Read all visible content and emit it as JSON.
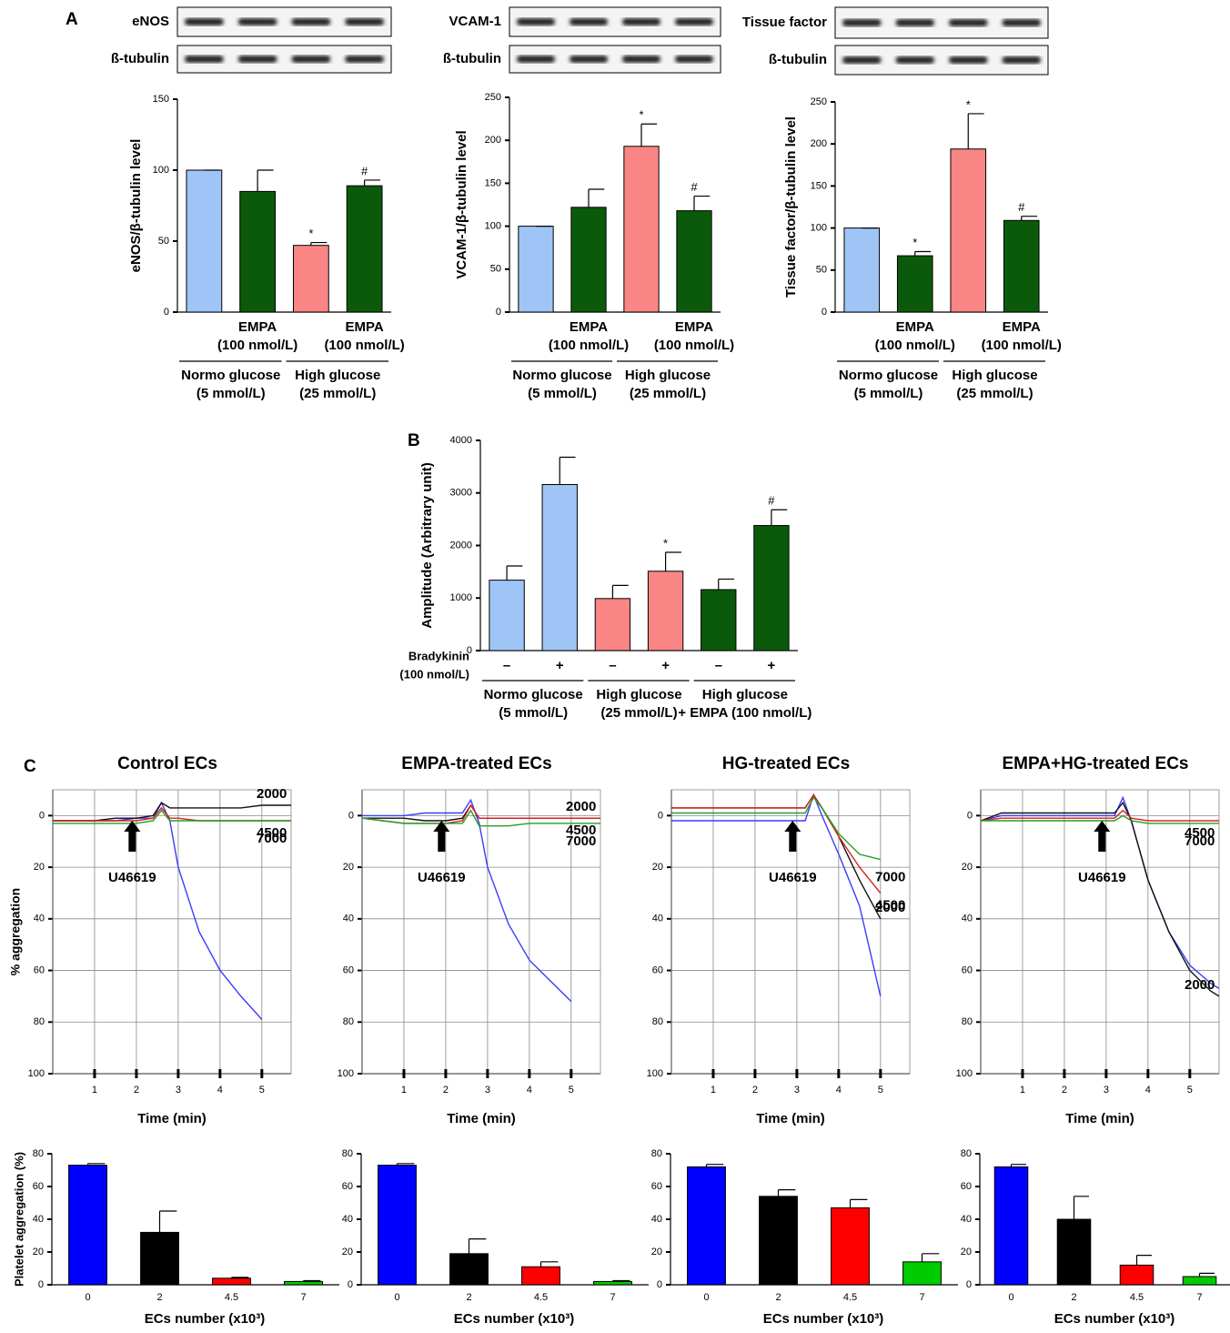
{
  "chart_data": [
    {
      "type": "bar",
      "panel": "A",
      "blots": [
        "eNOS",
        "ß-tubulin"
      ],
      "ylabel": "eNOS/β-tubulin level",
      "categories": [
        null,
        [
          "EMPA",
          "(100 nmol/L)"
        ],
        null,
        [
          "EMPA",
          "(100 nmol/L)"
        ]
      ],
      "groups": [
        [
          "Normo glucose",
          "(5 mmol/L)"
        ],
        [
          "High glucose",
          "(25 mmol/L)"
        ]
      ],
      "values": [
        100,
        85,
        47,
        89
      ],
      "errors": [
        0,
        15,
        2,
        4
      ],
      "annotations": [
        null,
        null,
        "*",
        "#"
      ],
      "colors": [
        "#9ec5f5",
        "#0b5a0b",
        "#f98585",
        "#0b5a0b"
      ],
      "ylim": [
        0,
        150
      ],
      "yticks": [
        0,
        50,
        100,
        150
      ]
    },
    {
      "type": "bar",
      "blots": [
        "VCAM-1",
        "ß-tubulin"
      ],
      "ylabel": "VCAM-1/β-tubulin level",
      "categories": [
        null,
        [
          "EMPA",
          "(100 nmol/L)"
        ],
        null,
        [
          "EMPA",
          "(100 nmol/L)"
        ]
      ],
      "groups": [
        [
          "Normo glucose",
          "(5 mmol/L)"
        ],
        [
          "High glucose",
          "(25 mmol/L)"
        ]
      ],
      "values": [
        100,
        122,
        193,
        118
      ],
      "errors": [
        0,
        21,
        26,
        17
      ],
      "annotations": [
        null,
        null,
        "*",
        "#"
      ],
      "colors": [
        "#9ec5f5",
        "#0b5a0b",
        "#f98585",
        "#0b5a0b"
      ],
      "ylim": [
        0,
        250
      ],
      "yticks": [
        0,
        50,
        100,
        150,
        200,
        250
      ]
    },
    {
      "type": "bar",
      "blots": [
        "Tissue factor",
        "ß-tubulin"
      ],
      "ylabel": "Tissue factor/β-tubulin level",
      "categories": [
        null,
        [
          "EMPA",
          "(100 nmol/L)"
        ],
        null,
        [
          "EMPA",
          "(100 nmol/L)"
        ]
      ],
      "groups": [
        [
          "Normo glucose",
          "(5 mmol/L)"
        ],
        [
          "High glucose",
          "(25 mmol/L)"
        ]
      ],
      "values": [
        100,
        67,
        194,
        109
      ],
      "errors": [
        0,
        5,
        42,
        5
      ],
      "annotations": [
        null,
        "*",
        "*",
        "#"
      ],
      "colors": [
        "#9ec5f5",
        "#0b5a0b",
        "#f98585",
        "#0b5a0b"
      ],
      "ylim": [
        0,
        250
      ],
      "yticks": [
        0,
        50,
        100,
        150,
        200,
        250
      ]
    },
    {
      "type": "bar",
      "panel": "B",
      "ylabel": "Amplitude (Arbitrary unit)",
      "row_label": [
        "Bradykinin",
        "(100 nmol/L)"
      ],
      "categories": [
        "–",
        "+",
        "–",
        "+",
        "–",
        "+"
      ],
      "groups": [
        [
          "Normo glucose",
          "(5 mmol/L)"
        ],
        [
          "High glucose",
          "(25 mmol/L)"
        ],
        [
          "High glucose",
          "+ EMPA (100 nmol/L)"
        ]
      ],
      "values": [
        1340,
        3160,
        990,
        1510,
        1160,
        2380
      ],
      "errors": [
        270,
        520,
        250,
        360,
        200,
        300
      ],
      "annotations": [
        null,
        null,
        null,
        "*",
        null,
        "#"
      ],
      "colors": [
        "#9ec5f5",
        "#9ec5f5",
        "#f98585",
        "#f98585",
        "#0b5a0b",
        "#0b5a0b"
      ],
      "ylim": [
        0,
        4000
      ],
      "yticks": [
        0,
        1000,
        2000,
        3000,
        4000
      ]
    },
    {
      "type": "line",
      "panel": "C",
      "title": "Control ECs",
      "xlabel": "Time (min)",
      "ylabel": "% aggregation",
      "y_inverted": true,
      "grid": true,
      "annotation": {
        "text": "U46619",
        "x": 1.9
      },
      "x": [
        0,
        0.5,
        1,
        1.5,
        2,
        2.4,
        2.6,
        2.8,
        3,
        3.5,
        4,
        4.5,
        5,
        5.5,
        5.7
      ],
      "series": [
        {
          "color": "#3b3bff",
          "values": [
            2,
            2,
            2,
            2,
            1,
            1,
            -5,
            2,
            20,
            45,
            60,
            70,
            79,
            null,
            null
          ]
        },
        {
          "name": "2000",
          "color": "#111111",
          "values": [
            2,
            2,
            2,
            1,
            1,
            0,
            -5,
            -3,
            -3,
            -3,
            -3,
            -3,
            -4,
            -4,
            -4
          ]
        },
        {
          "name": "4500",
          "color": "#e02020",
          "values": [
            2,
            2,
            2,
            2,
            2,
            1,
            -3,
            1,
            1,
            2,
            2,
            2,
            2,
            2,
            2
          ]
        },
        {
          "name": "7000",
          "color": "#20a020",
          "values": [
            3,
            3,
            3,
            3,
            3,
            2,
            -2,
            2,
            2,
            2,
            2,
            2,
            2,
            2,
            2
          ]
        }
      ],
      "xlim": [
        0,
        5.7
      ],
      "xticks": [
        1,
        2,
        3,
        4,
        5
      ],
      "ylim": [
        -10,
        100
      ],
      "yticks": [
        0,
        20,
        40,
        60,
        80,
        100
      ]
    },
    {
      "type": "line",
      "title": "EMPA-treated ECs",
      "xlabel": "Time (min)",
      "y_inverted": true,
      "grid": true,
      "annotation": {
        "text": "U46619",
        "x": 1.9
      },
      "x": [
        0,
        0.5,
        1,
        1.5,
        2,
        2.4,
        2.6,
        2.8,
        3,
        3.5,
        4,
        4.5,
        5,
        5.5,
        5.7
      ],
      "series": [
        {
          "color": "#3b3bff",
          "values": [
            0,
            0,
            0,
            -1,
            -1,
            -1,
            -6,
            3,
            20,
            42,
            56,
            64,
            72,
            null,
            null
          ]
        },
        {
          "name": "2000",
          "color": "#111111",
          "values": [
            1,
            1,
            1,
            2,
            2,
            1,
            -4,
            1,
            1,
            1,
            1,
            1,
            1,
            1,
            1
          ]
        },
        {
          "name": "4500",
          "color": "#e02020",
          "values": [
            1,
            2,
            3,
            3,
            3,
            2,
            -4,
            1,
            1,
            1,
            1,
            1,
            1,
            1,
            1
          ]
        },
        {
          "name": "7000",
          "color": "#20a020",
          "values": [
            1,
            2,
            3,
            3,
            3,
            3,
            -2,
            4,
            4,
            4,
            3,
            3,
            3,
            3,
            3
          ]
        }
      ],
      "xlim": [
        0,
        5.7
      ],
      "xticks": [
        1,
        2,
        3,
        4,
        5
      ],
      "ylim": [
        -10,
        100
      ],
      "yticks": [
        0,
        20,
        40,
        60,
        80,
        100
      ]
    },
    {
      "type": "line",
      "title": "HG-treated ECs",
      "xlabel": "Time (min)",
      "y_inverted": true,
      "grid": true,
      "annotation": {
        "text": "U46619",
        "x": 2.9
      },
      "x": [
        0,
        0.5,
        1,
        1.5,
        2,
        2.5,
        3,
        3.2,
        3.4,
        3.6,
        4,
        4.5,
        5
      ],
      "series": [
        {
          "color": "#3b3bff",
          "values": [
            2,
            2,
            2,
            2,
            2,
            2,
            2,
            2,
            -8,
            0,
            15,
            35,
            70
          ]
        },
        {
          "name": "2000",
          "color": "#111111",
          "values": [
            -3,
            -3,
            -3,
            -3,
            -3,
            -3,
            -3,
            -3,
            -8,
            -3,
            8,
            25,
            40
          ]
        },
        {
          "name": "4500",
          "color": "#e02020",
          "values": [
            -3,
            -3,
            -3,
            -3,
            -3,
            -3,
            -3,
            -3,
            -8,
            -3,
            8,
            20,
            30
          ]
        },
        {
          "name": "7000",
          "color": "#20a020",
          "values": [
            -1,
            -1,
            -1,
            -1,
            -1,
            -1,
            -1,
            -1,
            -7,
            -3,
            7,
            15,
            17
          ]
        }
      ],
      "xlim": [
        0,
        5.7
      ],
      "xticks": [
        1,
        2,
        3,
        4,
        5
      ],
      "ylim": [
        -10,
        100
      ],
      "yticks": [
        0,
        20,
        40,
        60,
        80,
        100
      ]
    },
    {
      "type": "line",
      "title": "EMPA+HG-treated ECs",
      "xlabel": "Time (min)",
      "y_inverted": true,
      "grid": true,
      "annotation": {
        "text": "U46619",
        "x": 2.9
      },
      "x": [
        0,
        0.5,
        1,
        1.5,
        2,
        2.5,
        3,
        3.2,
        3.4,
        3.6,
        4,
        4.5,
        5,
        5.5,
        5.7
      ],
      "series": [
        {
          "color": "#3b3bff",
          "values": [
            2,
            0,
            0,
            0,
            0,
            0,
            0,
            0,
            -7,
            2,
            25,
            45,
            58,
            65,
            67
          ]
        },
        {
          "name": "2000",
          "color": "#111111",
          "values": [
            2,
            -1,
            -1,
            -1,
            -1,
            -1,
            -1,
            -1,
            -5,
            2,
            25,
            45,
            60,
            68,
            70
          ]
        },
        {
          "name": "4500",
          "color": "#e02020",
          "values": [
            2,
            1,
            1,
            1,
            1,
            1,
            1,
            1,
            -2,
            1,
            2,
            2,
            2,
            2,
            2
          ]
        },
        {
          "name": "7000",
          "color": "#20a020",
          "values": [
            2,
            2,
            2,
            2,
            2,
            2,
            2,
            2,
            0,
            2,
            3,
            3,
            3,
            3,
            3
          ]
        }
      ],
      "xlim": [
        0,
        5.7
      ],
      "xticks": [
        1,
        2,
        3,
        4,
        5
      ],
      "ylim": [
        -10,
        100
      ],
      "yticks": [
        0,
        20,
        40,
        60,
        80,
        100
      ]
    },
    {
      "type": "bar",
      "ylabel": "Platelet aggregation (%)",
      "xlabel": "ECs number (x10³)",
      "categories": [
        "0",
        "2",
        "4.5",
        "7"
      ],
      "values": [
        73,
        32,
        4,
        2
      ],
      "errors": [
        1,
        13,
        0.5,
        0.5
      ],
      "colors": [
        "#0000ff",
        "#000000",
        "#ff0000",
        "#00cc00"
      ],
      "ylim": [
        0,
        80
      ],
      "yticks": [
        0,
        20,
        40,
        60,
        80
      ]
    },
    {
      "type": "bar",
      "xlabel": "ECs number (x10³)",
      "categories": [
        "0",
        "2",
        "4.5",
        "7"
      ],
      "values": [
        73,
        19,
        11,
        2
      ],
      "errors": [
        1,
        9,
        3,
        0.5
      ],
      "colors": [
        "#0000ff",
        "#000000",
        "#ff0000",
        "#00cc00"
      ],
      "ylim": [
        0,
        80
      ],
      "yticks": [
        0,
        20,
        40,
        60,
        80
      ]
    },
    {
      "type": "bar",
      "xlabel": "ECs number (x10³)",
      "categories": [
        "0",
        "2",
        "4.5",
        "7"
      ],
      "values": [
        72,
        54,
        47,
        14
      ],
      "errors": [
        1.5,
        4,
        5,
        5
      ],
      "colors": [
        "#0000ff",
        "#000000",
        "#ff0000",
        "#00cc00"
      ],
      "ylim": [
        0,
        80
      ],
      "yticks": [
        0,
        20,
        40,
        60,
        80
      ]
    },
    {
      "type": "bar",
      "xlabel": "ECs number (x10³)",
      "categories": [
        "0",
        "2",
        "4.5",
        "7"
      ],
      "values": [
        72,
        40,
        12,
        5
      ],
      "errors": [
        1.5,
        14,
        6,
        2
      ],
      "colors": [
        "#0000ff",
        "#000000",
        "#ff0000",
        "#00cc00"
      ],
      "ylim": [
        0,
        80
      ],
      "yticks": [
        0,
        20,
        40,
        60,
        80
      ]
    }
  ]
}
